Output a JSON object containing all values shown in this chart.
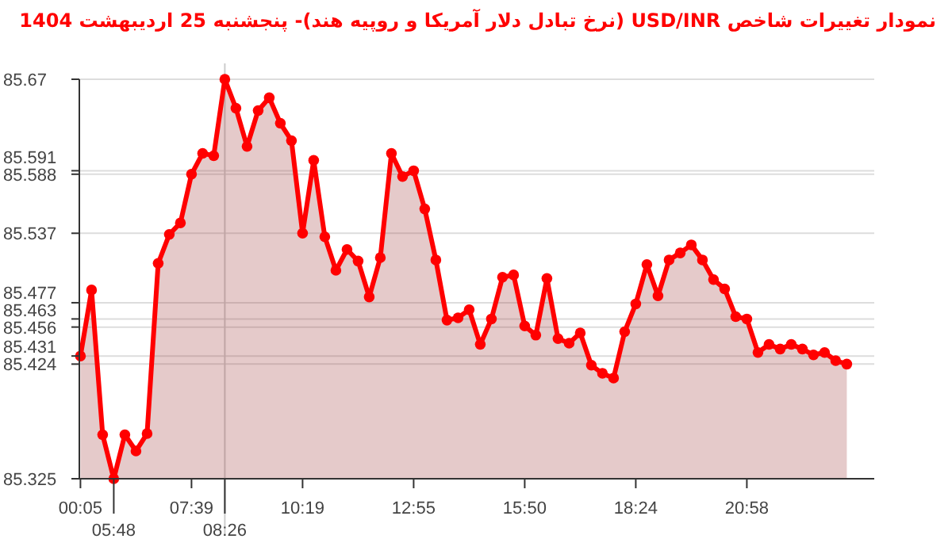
{
  "chart_data": {
    "type": "area",
    "title": "نمودار تغییرات شاخص USD/INR (نرخ تبادل دلار آمریکا و روپیه هند)- پنجشنبه  25 اردیبهشت 1404",
    "categories": [
      "00:05",
      null,
      null,
      "05:48",
      null,
      null,
      null,
      null,
      null,
      null,
      "07:39",
      null,
      null,
      "08:26",
      null,
      null,
      null,
      null,
      null,
      null,
      "10:19",
      null,
      null,
      null,
      null,
      null,
      null,
      null,
      null,
      null,
      "12:55",
      null,
      null,
      null,
      null,
      null,
      null,
      null,
      null,
      null,
      "15:50",
      null,
      null,
      null,
      null,
      null,
      null,
      null,
      null,
      null,
      "18:24",
      null,
      null,
      null,
      null,
      null,
      null,
      null,
      null,
      null,
      "20:58",
      null,
      null,
      null,
      null,
      null,
      null,
      null,
      null,
      null
    ],
    "series": [
      {
        "color": "#ff0000",
        "values": [
          85.431,
          85.488,
          85.363,
          85.325,
          85.363,
          85.349,
          85.364,
          85.511,
          85.536,
          85.546,
          85.588,
          85.606,
          85.604,
          85.67,
          85.645,
          85.612,
          85.643,
          85.654,
          85.632,
          85.617,
          85.537,
          85.6,
          85.534,
          85.505,
          85.523,
          85.513,
          85.482,
          85.516,
          85.606,
          85.586,
          85.591,
          85.558,
          85.514,
          85.462,
          85.464,
          85.471,
          85.441,
          85.463,
          85.499,
          85.501,
          85.457,
          85.449,
          85.498,
          85.446,
          85.442,
          85.451,
          85.423,
          85.416,
          85.412,
          85.452,
          85.476,
          85.51,
          85.483,
          85.514,
          85.52,
          85.527,
          85.514,
          85.497,
          85.489,
          85.465,
          85.463,
          85.434,
          85.441,
          85.437,
          85.441,
          85.437,
          85.432,
          85.434,
          85.427,
          85.424
        ]
      }
    ],
    "ylim": [
      85.325,
      85.67
    ],
    "yticks": [
      85.325,
      85.424,
      85.431,
      85.456,
      85.463,
      85.477,
      85.537,
      85.588,
      85.591,
      85.67
    ],
    "grid": "y",
    "marker": "circle",
    "line_style": "solid",
    "ref_lines": [
      {
        "axis": "x",
        "value": "08:26",
        "label": null,
        "color": "#cccccc"
      }
    ]
  }
}
